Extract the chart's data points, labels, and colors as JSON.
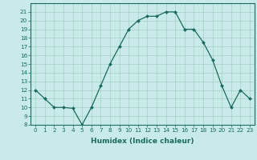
{
  "x": [
    0,
    1,
    2,
    3,
    4,
    5,
    6,
    7,
    8,
    9,
    10,
    11,
    12,
    13,
    14,
    15,
    16,
    17,
    18,
    19,
    20,
    21,
    22,
    23
  ],
  "y": [
    12,
    11,
    10,
    10,
    9.9,
    8,
    10,
    12.5,
    15,
    17,
    19,
    20,
    20.5,
    20.5,
    21,
    21,
    19,
    19,
    17.5,
    15.5,
    12.5,
    10,
    12,
    11
  ],
  "xlabel": "Humidex (Indice chaleur)",
  "ylim": [
    8,
    22
  ],
  "xlim": [
    -0.5,
    23.5
  ],
  "yticks": [
    8,
    9,
    10,
    11,
    12,
    13,
    14,
    15,
    16,
    17,
    18,
    19,
    20,
    21
  ],
  "xticks": [
    0,
    1,
    2,
    3,
    4,
    5,
    6,
    7,
    8,
    9,
    10,
    11,
    12,
    13,
    14,
    15,
    16,
    17,
    18,
    19,
    20,
    21,
    22,
    23
  ],
  "line_color": "#1a6b5a",
  "marker_color": "#1a6b5a",
  "bg_color": "#c8eae8",
  "grid_color": "#a8ccc8",
  "axis_color": "#1a6b5a",
  "label_color": "#1a6b5a",
  "tick_label_color": "#1a6b5a",
  "xlabel_fontsize": 6.5,
  "tick_fontsize": 5.2
}
